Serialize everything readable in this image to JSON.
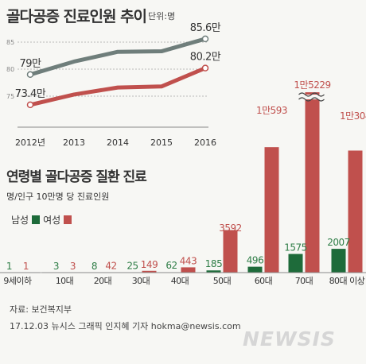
{
  "header": {
    "title": "골다공증 진료인원 추이",
    "unit": "단위:명"
  },
  "section2": {
    "title": "연령별 골다공증 질환 진료",
    "subtitle": "명/인구 10만명 당 진료인원"
  },
  "legend": {
    "male": "남성",
    "female": "여성"
  },
  "colors": {
    "male": "#1e6b3a",
    "female": "#c0504d",
    "male_text": "#2e7d46",
    "female_text": "#c0504d",
    "gray_line": "#6f7e7b",
    "red_line": "#c0504d"
  },
  "chart_data": [
    {
      "type": "line",
      "categories": [
        "2012년",
        "2013",
        "2014",
        "2015",
        "2016"
      ],
      "yticks": [
        "85",
        "80",
        "75"
      ],
      "ylim": [
        70,
        87
      ],
      "series": [
        {
          "values": [
            79.0,
            81.4,
            83.2,
            83.3,
            85.6
          ],
          "labels": [
            "79만",
            "",
            "",
            "",
            "85.6만"
          ]
        },
        {
          "values": [
            73.4,
            75.3,
            76.6,
            76.8,
            80.2
          ],
          "labels": [
            "73.4만",
            "",
            "",
            "",
            "80.2만"
          ]
        }
      ]
    },
    {
      "type": "bar",
      "categories": [
        "9세이하",
        "10대",
        "20대",
        "30대",
        "40대",
        "50대",
        "60대",
        "70대",
        "80대 이상"
      ],
      "series": [
        {
          "name": "남성",
          "values": [
            1,
            3,
            8,
            25,
            62,
            185,
            496,
            1575,
            2007
          ],
          "labels": [
            "1",
            "3",
            "8",
            "25",
            "62",
            "185",
            "496",
            "1575",
            "2007"
          ]
        },
        {
          "name": "여성",
          "values": [
            1,
            3,
            42,
            149,
            443,
            3592,
            10593,
            15229,
            10304
          ],
          "labels": [
            "1",
            "3",
            "42",
            "149",
            "443",
            "3592",
            "1만593",
            "1만5229",
            "1만304"
          ]
        }
      ]
    }
  ],
  "footer": {
    "source": "자료: 보건복지부",
    "credit": "17.12.03 뉴시스 그래픽 인지혜 기자 hokma@newsis.com",
    "watermark": "NEWSIS"
  }
}
